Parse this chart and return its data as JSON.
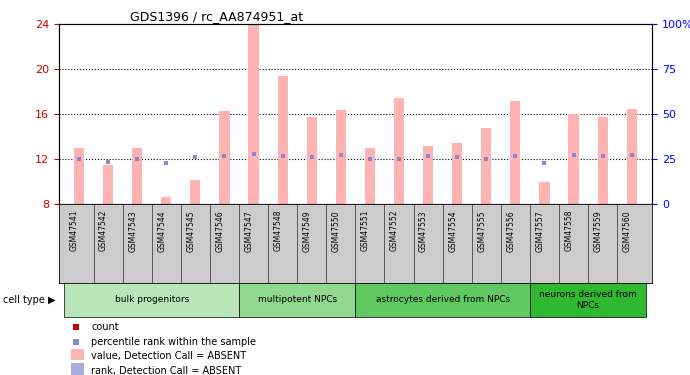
{
  "title": "GDS1396 / rc_AA874951_at",
  "samples": [
    "GSM47541",
    "GSM47542",
    "GSM47543",
    "GSM47544",
    "GSM47545",
    "GSM47546",
    "GSM47547",
    "GSM47548",
    "GSM47549",
    "GSM47550",
    "GSM47551",
    "GSM47552",
    "GSM47553",
    "GSM47554",
    "GSM47555",
    "GSM47556",
    "GSM47557",
    "GSM47558",
    "GSM47559",
    "GSM47560"
  ],
  "bar_values": [
    13.0,
    11.5,
    13.0,
    8.7,
    10.2,
    16.3,
    24.0,
    19.4,
    15.8,
    16.4,
    13.0,
    17.5,
    13.2,
    13.5,
    14.8,
    17.2,
    10.0,
    16.0,
    15.8,
    16.5
  ],
  "rank_values": [
    12.0,
    11.8,
    12.0,
    11.7,
    12.2,
    12.3,
    12.5,
    12.3,
    12.2,
    12.4,
    12.0,
    12.0,
    12.3,
    12.2,
    12.0,
    12.3,
    11.7,
    12.4,
    12.3,
    12.4
  ],
  "ylim_left": [
    8,
    24
  ],
  "ylim_right": [
    0,
    100
  ],
  "yticks_left": [
    8,
    12,
    16,
    20,
    24
  ],
  "yticks_right": [
    0,
    25,
    50,
    75,
    100
  ],
  "cell_groups": [
    {
      "label": "bulk progenitors",
      "start": 0,
      "end": 6,
      "color": "#b8e6b8"
    },
    {
      "label": "multipotent NPCs",
      "start": 6,
      "end": 10,
      "color": "#90d890"
    },
    {
      "label": "astrocytes derived from NPCs",
      "start": 10,
      "end": 16,
      "color": "#60c860"
    },
    {
      "label": "neurons derived from\nNPCs",
      "start": 16,
      "end": 20,
      "color": "#30b830"
    }
  ],
  "bar_color": "#ffb3b3",
  "rank_marker_color": "#8888cc",
  "count_color": "#cc0000",
  "count_marker_color": "#cc0000",
  "legend_rank_absent_color": "#aaaadd",
  "xtick_bg": "#cccccc"
}
